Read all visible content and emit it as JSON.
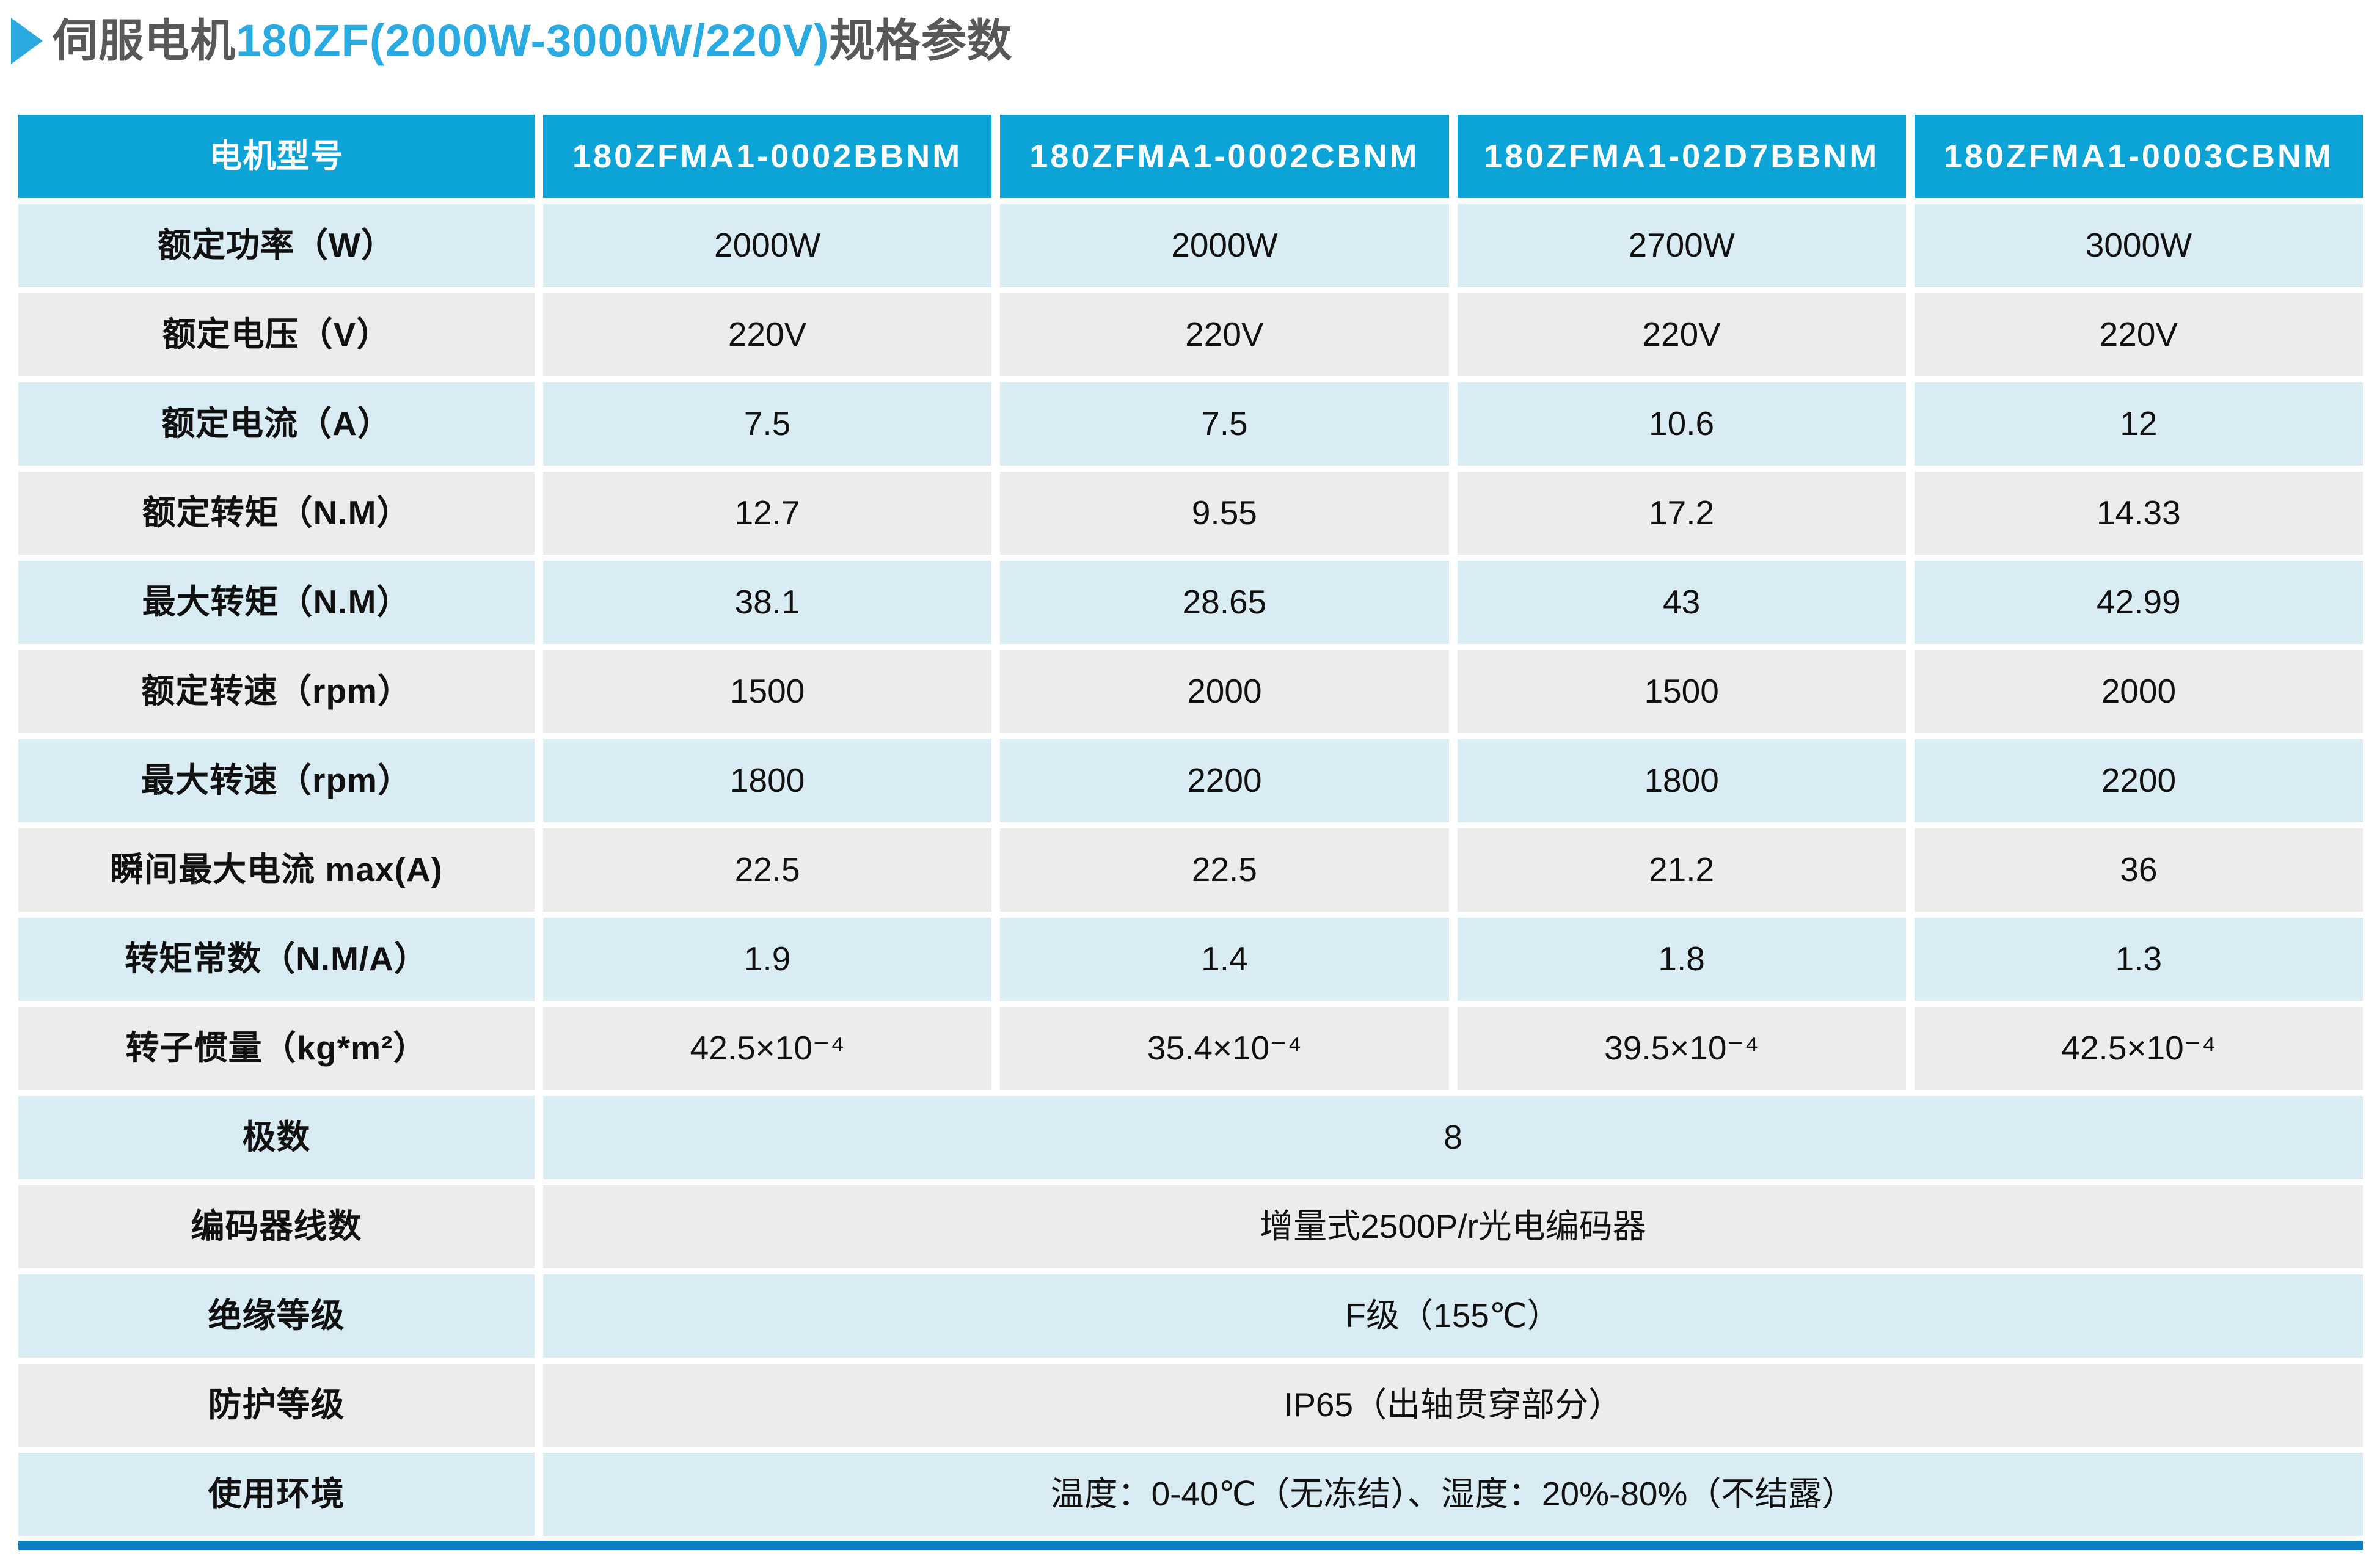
{
  "title": {
    "part1": "伺服电机",
    "part2": "180ZF(2000W-3000W/220V)",
    "part3": "规格参数"
  },
  "table": {
    "header": [
      "电机型号",
      "180ZFMA1-0002BBNM",
      "180ZFMA1-0002CBNM",
      "180ZFMA1-02D7BBNM",
      "180ZFMA1-0003CBNM"
    ],
    "rows": [
      {
        "label": "额定功率（W）",
        "values": [
          "2000W",
          "2000W",
          "2700W",
          "3000W"
        ]
      },
      {
        "label": "额定电压（V）",
        "values": [
          "220V",
          "220V",
          "220V",
          "220V"
        ]
      },
      {
        "label": "额定电流（A）",
        "values": [
          "7.5",
          "7.5",
          "10.6",
          "12"
        ]
      },
      {
        "label": "额定转矩（N.M）",
        "values": [
          "12.7",
          "9.55",
          "17.2",
          "14.33"
        ]
      },
      {
        "label": "最大转矩（N.M）",
        "values": [
          "38.1",
          "28.65",
          "43",
          "42.99"
        ]
      },
      {
        "label": "额定转速（rpm）",
        "values": [
          "1500",
          "2000",
          "1500",
          "2000"
        ]
      },
      {
        "label": "最大转速（rpm）",
        "values": [
          "1800",
          "2200",
          "1800",
          "2200"
        ]
      },
      {
        "label": "瞬间最大电流 max(A)",
        "values": [
          "22.5",
          "22.5",
          "21.2",
          "36"
        ]
      },
      {
        "label": "转矩常数（N.M/A）",
        "values": [
          "1.9",
          "1.4",
          "1.8",
          "1.3"
        ]
      },
      {
        "label": "转子惯量（kg*m²）",
        "values": [
          "42.5×10⁻⁴",
          "35.4×10⁻⁴",
          "39.5×10⁻⁴",
          "42.5×10⁻⁴"
        ]
      }
    ],
    "merged": [
      {
        "label": "极数",
        "value": "8"
      },
      {
        "label": "编码器线数",
        "value": "增量式2500P/r光电编码器"
      },
      {
        "label": "绝缘等级",
        "value": "F级（155℃）"
      },
      {
        "label": "防护等级",
        "value": "IP65（出轴贯穿部分）"
      },
      {
        "label": "使用环境",
        "value": "温度：0-40℃（无冻结）、湿度：20%-80%（不结露）"
      }
    ]
  },
  "colors": {
    "header_blue": "#0ca4d6",
    "title_blue": "#29abe2",
    "title_text_gray": "#595757",
    "row_light_blue": "#d9ebf3",
    "row_gray": "#ececec",
    "bottom_bar_blue": "#0e7ec2"
  }
}
